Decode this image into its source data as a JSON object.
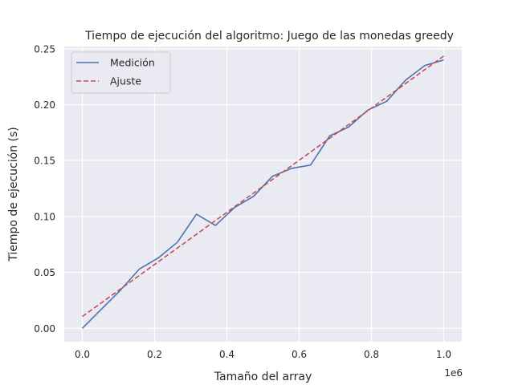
{
  "chart_data": {
    "type": "line",
    "title": "Tiempo de ejecución del algoritmo: Juego de las monedas greedy",
    "xlabel": "Tamaño del array",
    "ylabel": "Tiempo de ejecución (s)",
    "x_offset_text": "1e6",
    "xlim": [
      -0.05,
      1.05
    ],
    "ylim": [
      -0.012,
      0.252
    ],
    "x_ticks": [
      0.0,
      0.2,
      0.4,
      0.6,
      0.8,
      1.0
    ],
    "x_tick_labels": [
      "0.0",
      "0.2",
      "0.4",
      "0.6",
      "0.8",
      "1.0"
    ],
    "y_ticks": [
      0.0,
      0.05,
      0.1,
      0.15,
      0.2,
      0.25
    ],
    "y_tick_labels": [
      "0.00",
      "0.05",
      "0.10",
      "0.15",
      "0.20",
      "0.25"
    ],
    "grid": true,
    "legend_position": "top-left",
    "series": [
      {
        "name": "Medición",
        "color": "#4c72b0",
        "style": "solid",
        "x": [
          0.0,
          0.0526,
          0.1053,
          0.1579,
          0.2105,
          0.2632,
          0.3158,
          0.3684,
          0.4211,
          0.4737,
          0.5263,
          0.5789,
          0.6316,
          0.6842,
          0.7368,
          0.7895,
          0.8421,
          0.8947,
          0.9474,
          1.0
        ],
        "y": [
          0.0,
          0.017,
          0.034,
          0.053,
          0.063,
          0.077,
          0.102,
          0.092,
          0.108,
          0.118,
          0.136,
          0.143,
          0.146,
          0.172,
          0.18,
          0.195,
          0.203,
          0.222,
          0.235,
          0.24
        ]
      },
      {
        "name": "Ajuste",
        "color": "#c44e52",
        "style": "dashed",
        "x": [
          0.0,
          1.0
        ],
        "y": [
          0.0105,
          0.2435
        ]
      }
    ]
  }
}
